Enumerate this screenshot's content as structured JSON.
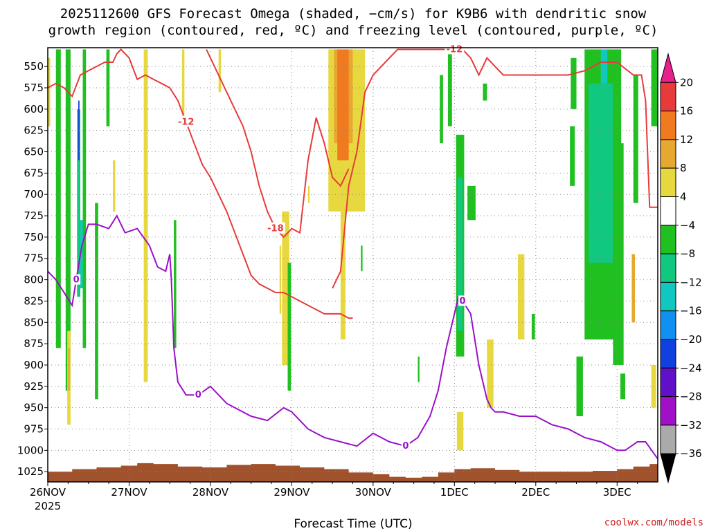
{
  "chart_data": {
    "type": "heatmap",
    "title_line1": "2025112600 GFS Forecast Omega (shaded, −cm/s) for K9B6 with dendritic snow",
    "title_line2": "growth region (contoured, red, ºC) and freezing level (contoured, purple, ºC)",
    "xlabel": "Forecast Time (UTC)",
    "credit": "coolwx.com/models",
    "x_ticks": [
      {
        "day": 0,
        "label": "26NOV"
      },
      {
        "day": 1,
        "label": "27NOV"
      },
      {
        "day": 2,
        "label": "28NOV"
      },
      {
        "day": 3,
        "label": "29NOV"
      },
      {
        "day": 4,
        "label": "30NOV"
      },
      {
        "day": 5,
        "label": "1DEC"
      },
      {
        "day": 6,
        "label": "2DEC"
      },
      {
        "day": 7,
        "label": "3DEC"
      }
    ],
    "x_sublabel": "2025",
    "xlim": [
      0,
      7.5
    ],
    "y_ticks": [
      "550",
      "575",
      "600",
      "625",
      "650",
      "675",
      "700",
      "725",
      "750",
      "775",
      "800",
      "825",
      "850",
      "875",
      "900",
      "925",
      "950",
      "975",
      "1000",
      "1025"
    ],
    "ylim": [
      1037,
      528
    ],
    "y_reversed": true,
    "grid": true,
    "colorbar": {
      "labels": [
        "20",
        "16",
        "12",
        "8",
        "4",
        "−4",
        "−8",
        "−12",
        "−16",
        "−20",
        "−24",
        "−28",
        "−32",
        "−36"
      ],
      "colors": [
        "#e8208c",
        "#e83a3a",
        "#f07a20",
        "#e6a830",
        "#e8d840",
        "#ffffff",
        "#20c020",
        "#10c880",
        "#10c8c0",
        "#1090f0",
        "#1040e0",
        "#6010c8",
        "#a010c8",
        "#aaaaaa",
        "#000000"
      ]
    },
    "terrain_color": "#a0522d",
    "terrain": {
      "x": [
        0,
        0.3,
        0.6,
        0.9,
        1.1,
        1.3,
        1.6,
        1.9,
        2.2,
        2.5,
        2.8,
        3.1,
        3.4,
        3.7,
        4.0,
        4.2,
        4.4,
        4.6,
        4.8,
        5.0,
        5.2,
        5.5,
        5.8,
        6.1,
        6.4,
        6.7,
        7.0,
        7.2,
        7.4,
        7.5
      ],
      "p": [
        1025,
        1022,
        1020,
        1018,
        1015,
        1016,
        1019,
        1020,
        1017,
        1016,
        1018,
        1020,
        1022,
        1026,
        1028,
        1031,
        1032,
        1031,
        1026,
        1022,
        1021,
        1023,
        1025,
        1025,
        1025,
        1024,
        1022,
        1019,
        1016,
        1016
      ]
    },
    "shading": [
      {
        "v": 4,
        "d0": 0.0,
        "d1": 0.03,
        "p0": 540,
        "p1": 620
      },
      {
        "v": -8,
        "d0": 0.1,
        "d1": 0.16,
        "p0": 530,
        "p1": 880
      },
      {
        "v": -8,
        "d0": 0.22,
        "d1": 0.28,
        "p0": 530,
        "p1": 930
      },
      {
        "v": -12,
        "d0": 0.36,
        "d1": 0.4,
        "p0": 600,
        "p1": 820
      },
      {
        "v": -24,
        "d0": 0.375,
        "d1": 0.39,
        "p0": 590,
        "p1": 660
      },
      {
        "v": -16,
        "d0": 0.4,
        "d1": 0.43,
        "p0": 730,
        "p1": 810
      },
      {
        "v": -8,
        "d0": 0.43,
        "d1": 0.47,
        "p0": 530,
        "p1": 880
      },
      {
        "v": 4,
        "d0": 0.24,
        "d1": 0.28,
        "p0": 860,
        "p1": 970
      },
      {
        "v": 8,
        "d0": 0.25,
        "d1": 0.27,
        "p0": 880,
        "p1": 930
      },
      {
        "v": -8,
        "d0": 0.58,
        "d1": 0.62,
        "p0": 710,
        "p1": 940
      },
      {
        "v": -8,
        "d0": 0.72,
        "d1": 0.76,
        "p0": 530,
        "p1": 620
      },
      {
        "v": 4,
        "d0": 1.18,
        "d1": 1.23,
        "p0": 530,
        "p1": 920
      },
      {
        "v": 4,
        "d0": 0.8,
        "d1": 0.83,
        "p0": 660,
        "p1": 720
      },
      {
        "v": -8,
        "d0": 1.55,
        "d1": 1.58,
        "p0": 730,
        "p1": 880
      },
      {
        "v": 4,
        "d0": 1.65,
        "d1": 1.68,
        "p0": 530,
        "p1": 620
      },
      {
        "v": 4,
        "d0": 2.1,
        "d1": 2.13,
        "p0": 530,
        "p1": 580
      },
      {
        "v": 4,
        "d0": 2.85,
        "d1": 2.87,
        "p0": 760,
        "p1": 840
      },
      {
        "v": 4,
        "d0": 2.88,
        "d1": 2.97,
        "p0": 720,
        "p1": 900
      },
      {
        "v": -8,
        "d0": 2.95,
        "d1": 2.99,
        "p0": 780,
        "p1": 930
      },
      {
        "v": 4,
        "d0": 3.2,
        "d1": 3.22,
        "p0": 690,
        "p1": 710
      },
      {
        "v": 4,
        "d0": 3.45,
        "d1": 3.9,
        "p0": 530,
        "p1": 720
      },
      {
        "v": 8,
        "d0": 3.52,
        "d1": 3.75,
        "p0": 530,
        "p1": 640
      },
      {
        "v": 12,
        "d0": 3.56,
        "d1": 3.7,
        "p0": 530,
        "p1": 660
      },
      {
        "v": 4,
        "d0": 3.6,
        "d1": 3.66,
        "p0": 720,
        "p1": 870
      },
      {
        "v": -8,
        "d0": 3.85,
        "d1": 3.87,
        "p0": 760,
        "p1": 790
      },
      {
        "v": -8,
        "d0": 4.55,
        "d1": 4.57,
        "p0": 890,
        "p1": 920
      },
      {
        "v": -8,
        "d0": 4.82,
        "d1": 4.86,
        "p0": 560,
        "p1": 640
      },
      {
        "v": -8,
        "d0": 4.92,
        "d1": 4.97,
        "p0": 530,
        "p1": 620
      },
      {
        "v": -8,
        "d0": 5.02,
        "d1": 5.12,
        "p0": 630,
        "p1": 890
      },
      {
        "v": -12,
        "d0": 5.04,
        "d1": 5.1,
        "p0": 680,
        "p1": 860
      },
      {
        "v": -8,
        "d0": 5.16,
        "d1": 5.26,
        "p0": 690,
        "p1": 730
      },
      {
        "v": 4,
        "d0": 5.03,
        "d1": 5.11,
        "p0": 955,
        "p1": 1000
      },
      {
        "v": 4,
        "d0": 5.4,
        "d1": 5.48,
        "p0": 870,
        "p1": 950
      },
      {
        "v": -8,
        "d0": 5.35,
        "d1": 5.4,
        "p0": 570,
        "p1": 590
      },
      {
        "v": 4,
        "d0": 5.78,
        "d1": 5.86,
        "p0": 770,
        "p1": 870
      },
      {
        "v": -8,
        "d0": 5.95,
        "d1": 5.99,
        "p0": 840,
        "p1": 870
      },
      {
        "v": -8,
        "d0": 6.5,
        "d1": 6.58,
        "p0": 890,
        "p1": 960
      },
      {
        "v": -8,
        "d0": 6.43,
        "d1": 6.5,
        "p0": 540,
        "p1": 600
      },
      {
        "v": -8,
        "d0": 6.42,
        "d1": 6.48,
        "p0": 620,
        "p1": 690
      },
      {
        "v": -8,
        "d0": 6.6,
        "d1": 7.05,
        "p0": 530,
        "p1": 870
      },
      {
        "v": -12,
        "d0": 6.65,
        "d1": 6.95,
        "p0": 570,
        "p1": 780
      },
      {
        "v": -16,
        "d0": 6.8,
        "d1": 6.88,
        "p0": 530,
        "p1": 570
      },
      {
        "v": -8,
        "d0": 6.95,
        "d1": 7.08,
        "p0": 640,
        "p1": 900
      },
      {
        "v": -8,
        "d0": 7.04,
        "d1": 7.1,
        "p0": 910,
        "p1": 940
      },
      {
        "v": 8,
        "d0": 7.18,
        "d1": 7.22,
        "p0": 770,
        "p1": 850
      },
      {
        "v": -8,
        "d0": 7.2,
        "d1": 7.26,
        "p0": 560,
        "p1": 710
      },
      {
        "v": -8,
        "d0": 7.42,
        "d1": 7.5,
        "p0": 530,
        "p1": 620
      },
      {
        "v": 4,
        "d0": 7.42,
        "d1": 7.48,
        "p0": 900,
        "p1": 950
      }
    ],
    "freezing_level": {
      "label": "0",
      "x": [
        0,
        0.1,
        0.2,
        0.3,
        0.35,
        0.42,
        0.5,
        0.6,
        0.75,
        0.85,
        0.95,
        1.1,
        1.25,
        1.35,
        1.45,
        1.5,
        1.52,
        1.55,
        1.6,
        1.7,
        1.85,
        2.0,
        2.2,
        2.5,
        2.7,
        2.9,
        3.0,
        3.2,
        3.4,
        3.6,
        3.8,
        4.0,
        4.2,
        4.4,
        4.55,
        4.7,
        4.8,
        4.9,
        5.0,
        5.05,
        5.1,
        5.2,
        5.3,
        5.4,
        5.45,
        5.5,
        5.6,
        5.8,
        6.0,
        6.2,
        6.4,
        6.6,
        6.8,
        7.0,
        7.1,
        7.25,
        7.35,
        7.5
      ],
      "p": [
        790,
        800,
        815,
        830,
        800,
        760,
        735,
        735,
        740,
        725,
        745,
        740,
        760,
        785,
        790,
        770,
        800,
        880,
        920,
        935,
        935,
        925,
        945,
        960,
        965,
        950,
        955,
        975,
        985,
        990,
        995,
        980,
        990,
        995,
        985,
        960,
        930,
        880,
        840,
        820,
        825,
        840,
        900,
        940,
        950,
        955,
        955,
        960,
        960,
        970,
        975,
        985,
        990,
        1000,
        1000,
        990,
        990,
        1010
      ]
    },
    "dgz_contours": [
      {
        "level": "-12",
        "x": [
          0,
          0.1,
          0.2,
          0.3,
          0.4,
          0.5,
          0.6,
          0.7,
          0.8,
          0.85,
          0.9,
          1.0,
          1.1,
          1.2,
          1.3,
          1.4,
          1.5,
          1.6,
          1.7,
          1.8,
          1.9,
          2.0,
          2.1,
          2.2,
          2.3,
          2.4,
          2.5,
          2.6,
          2.7,
          2.8,
          2.9,
          3.0,
          3.1,
          3.2,
          3.3,
          3.4,
          3.5,
          3.6,
          3.7,
          3.75
        ],
        "p": [
          575,
          570,
          575,
          585,
          560,
          555,
          550,
          545,
          545,
          535,
          530,
          540,
          565,
          560,
          565,
          570,
          575,
          590,
          615,
          640,
          665,
          680,
          700,
          720,
          745,
          770,
          795,
          805,
          810,
          815,
          815,
          820,
          825,
          830,
          835,
          840,
          840,
          840,
          845,
          845
        ]
      },
      {
        "level": "-18",
        "x": [
          1.95,
          2.0,
          2.2,
          2.4,
          2.5,
          2.6,
          2.7,
          2.8,
          2.9,
          3.0,
          3.1,
          3.2,
          3.3,
          3.4,
          3.5,
          3.6,
          3.7
        ],
        "p": [
          530,
          540,
          580,
          620,
          650,
          690,
          720,
          740,
          750,
          740,
          745,
          660,
          610,
          640,
          680,
          690,
          670
        ]
      },
      {
        "level": "-12",
        "x": [
          3.5,
          3.6,
          3.7,
          3.8,
          3.9,
          4.0,
          4.2,
          4.3,
          4.4,
          4.5,
          4.6,
          4.7,
          4.8,
          4.9,
          5.0,
          5.1,
          5.2,
          5.3,
          5.4,
          5.6,
          5.8,
          6.0,
          6.2,
          6.4,
          6.6,
          6.8,
          7.0,
          7.2,
          7.3,
          7.35,
          7.4,
          7.5
        ],
        "p": [
          810,
          790,
          690,
          650,
          580,
          560,
          540,
          530,
          530,
          530,
          530,
          530,
          530,
          530,
          530,
          530,
          540,
          560,
          540,
          560,
          560,
          560,
          560,
          560,
          555,
          545,
          545,
          560,
          560,
          590,
          715,
          715
        ]
      }
    ]
  }
}
